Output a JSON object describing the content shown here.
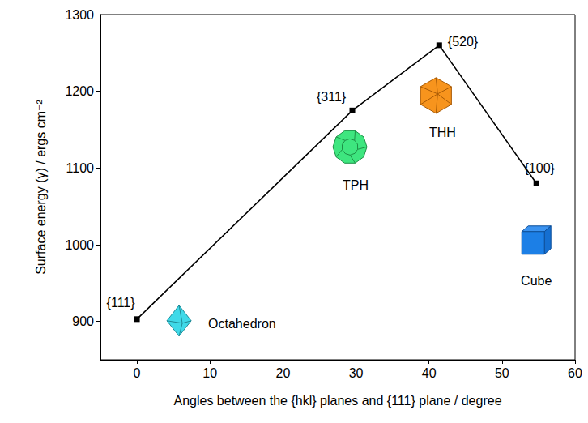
{
  "chart_data": {
    "type": "line",
    "x_label": "Angles between the {hkl} planes and {111} plane / degree",
    "y_label": "Surface energy (γ) / ergs cm⁻²",
    "x": [
      0,
      29.5,
      41.4,
      54.7
    ],
    "values": [
      903,
      1175,
      1260,
      1080
    ],
    "point_labels": [
      "{111}",
      "{311}",
      "{520}",
      "{100}"
    ],
    "annotations": [
      "Octahedron",
      "TPH",
      "THH",
      "Cube"
    ],
    "color": "#000000",
    "marker": "square",
    "xlim": [
      -5,
      60
    ],
    "xticks": [
      0,
      10,
      20,
      30,
      40,
      50,
      60
    ],
    "ylim": [
      850,
      1300
    ],
    "yticks": [
      900,
      1000,
      1100,
      1200,
      1300
    ],
    "grid": false
  }
}
